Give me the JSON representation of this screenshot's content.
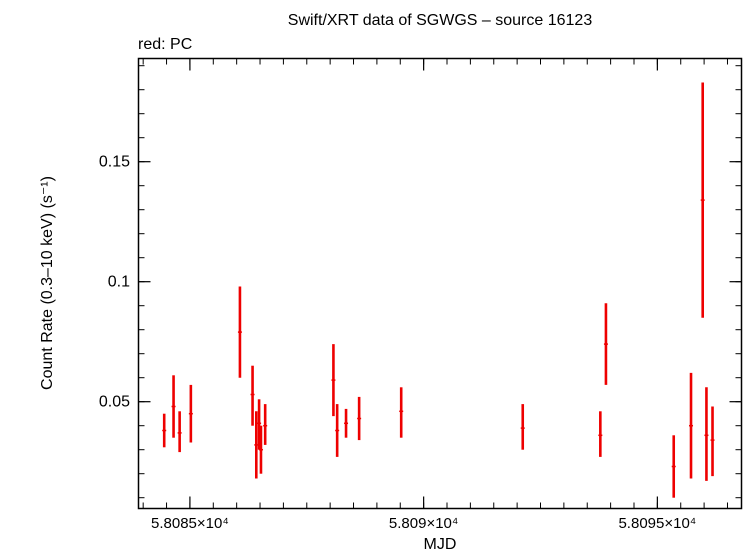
{
  "chart_data": {
    "type": "scatter",
    "title": "Swift/XRT data of SGWGS – source 16123",
    "subtitle": "red: PC",
    "xlabel": "MJD",
    "ylabel": "Count Rate (0.3–10 keV) (s⁻¹)",
    "xlim": [
      58083.9,
      58096.8
    ],
    "ylim": [
      0.0055,
      0.193
    ],
    "x_ticks": [
      {
        "value": 58085,
        "label": "5.8085×10⁴"
      },
      {
        "value": 58090,
        "label": "5.809×10⁴"
      },
      {
        "value": 58095,
        "label": "5.8095×10⁴"
      }
    ],
    "y_ticks": [
      {
        "value": 0.05,
        "label": "0.05"
      },
      {
        "value": 0.1,
        "label": "0.1"
      },
      {
        "value": 0.15,
        "label": "0.15"
      }
    ],
    "grid": false,
    "series": [
      {
        "color": "#ee0000",
        "points": [
          {
            "x": 58084.45,
            "y": 0.038,
            "ylo": 0.031,
            "yhi": 0.045
          },
          {
            "x": 58084.65,
            "y": 0.048,
            "ylo": 0.035,
            "yhi": 0.061
          },
          {
            "x": 58084.78,
            "y": 0.037,
            "ylo": 0.029,
            "yhi": 0.046
          },
          {
            "x": 58085.02,
            "y": 0.045,
            "ylo": 0.033,
            "yhi": 0.057
          },
          {
            "x": 58086.07,
            "y": 0.079,
            "ylo": 0.06,
            "yhi": 0.098
          },
          {
            "x": 58086.34,
            "y": 0.053,
            "ylo": 0.04,
            "yhi": 0.065
          },
          {
            "x": 58086.42,
            "y": 0.032,
            "ylo": 0.018,
            "yhi": 0.046
          },
          {
            "x": 58086.48,
            "y": 0.041,
            "ylo": 0.03,
            "yhi": 0.051
          },
          {
            "x": 58086.52,
            "y": 0.03,
            "ylo": 0.02,
            "yhi": 0.04
          },
          {
            "x": 58086.61,
            "y": 0.04,
            "ylo": 0.032,
            "yhi": 0.049
          },
          {
            "x": 58088.07,
            "y": 0.059,
            "ylo": 0.044,
            "yhi": 0.074
          },
          {
            "x": 58088.15,
            "y": 0.038,
            "ylo": 0.027,
            "yhi": 0.049
          },
          {
            "x": 58088.34,
            "y": 0.041,
            "ylo": 0.035,
            "yhi": 0.047
          },
          {
            "x": 58088.62,
            "y": 0.043,
            "ylo": 0.034,
            "yhi": 0.052
          },
          {
            "x": 58089.52,
            "y": 0.046,
            "ylo": 0.035,
            "yhi": 0.056
          },
          {
            "x": 58092.12,
            "y": 0.039,
            "ylo": 0.03,
            "yhi": 0.049
          },
          {
            "x": 58093.78,
            "y": 0.036,
            "ylo": 0.027,
            "yhi": 0.046
          },
          {
            "x": 58093.9,
            "y": 0.074,
            "ylo": 0.057,
            "yhi": 0.091
          },
          {
            "x": 58095.35,
            "y": 0.023,
            "ylo": 0.01,
            "yhi": 0.036
          },
          {
            "x": 58095.72,
            "y": 0.04,
            "ylo": 0.018,
            "yhi": 0.062
          },
          {
            "x": 58095.97,
            "y": 0.134,
            "ylo": 0.085,
            "yhi": 0.183
          },
          {
            "x": 58096.05,
            "y": 0.036,
            "ylo": 0.017,
            "yhi": 0.056
          },
          {
            "x": 58096.18,
            "y": 0.034,
            "ylo": 0.019,
            "yhi": 0.048
          }
        ]
      }
    ]
  }
}
